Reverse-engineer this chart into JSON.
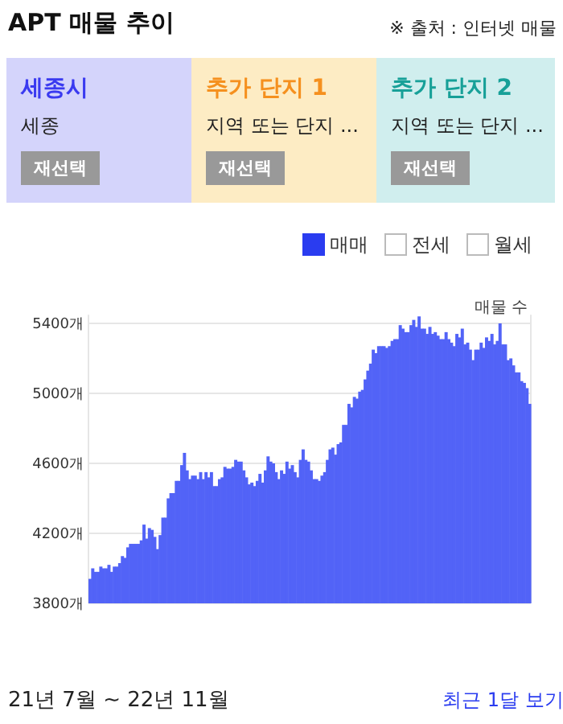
{
  "chart_data": {
    "type": "bar",
    "title": "APT 매물 추이",
    "ylabel": "매물 수",
    "annotations": [
      "※ 출처 : 인터넷 매물",
      "세종시",
      "세종",
      "재선택",
      "추가 단지 1",
      "지역 또는 단지 ...",
      "재선택",
      "추가 단지 2",
      "지역 또는 단지 ...",
      "재선택",
      "전세",
      "월세",
      "21년 7월 ~ 22년 11월",
      "최근 1달 보기"
    ],
    "ylim": [
      3800,
      5450
    ],
    "yticks": [
      {
        "value": 3800,
        "label": "3800개"
      },
      {
        "value": 4200,
        "label": "4200개"
      },
      {
        "value": 4600,
        "label": "4600개"
      },
      {
        "value": 5000,
        "label": "5000개"
      },
      {
        "value": 5400,
        "label": "5400개"
      }
    ],
    "grid": "y",
    "legend": "top right",
    "tick_labels": "y",
    "categories": [
      null,
      null,
      null,
      null,
      null,
      null,
      null,
      null,
      null,
      null,
      null,
      null,
      null,
      null,
      null,
      null,
      null,
      null,
      null,
      null,
      null,
      null,
      null,
      null,
      null,
      null,
      null,
      null,
      null,
      null,
      null,
      null,
      null,
      null,
      null,
      null,
      null,
      null,
      null,
      null,
      null,
      null,
      null,
      null,
      null,
      null,
      null,
      null,
      null,
      null,
      null,
      null,
      null,
      null,
      null,
      null,
      null,
      null,
      null,
      null,
      null,
      null,
      null,
      null,
      null,
      null,
      null,
      null,
      null,
      null,
      null,
      null,
      null,
      null,
      null,
      null,
      null,
      null,
      null,
      null,
      null,
      null,
      null,
      null,
      null,
      null,
      null,
      null,
      null,
      null,
      null,
      null,
      null,
      null,
      null,
      null,
      null,
      null,
      null,
      null,
      null,
      null,
      null,
      null,
      null,
      null,
      null,
      null,
      null,
      null,
      null,
      null,
      null,
      null,
      null,
      null,
      null,
      null,
      null,
      null,
      null,
      null,
      null,
      null,
      null,
      null,
      null,
      null,
      null,
      null,
      null,
      null,
      null,
      null,
      null,
      null,
      null,
      null,
      null,
      null,
      null,
      null,
      null,
      null,
      null,
      null,
      null,
      null,
      null,
      null,
      null,
      null,
      null,
      null,
      null,
      null,
      null,
      null,
      null,
      null,
      null,
      null,
      null,
      null
    ],
    "series": [
      {
        "name": "매매",
        "color": "#5263f7",
        "values": [
          3940,
          4000,
          3980,
          3980,
          4010,
          4000,
          4000,
          4020,
          3980,
          4010,
          4010,
          4030,
          4070,
          4060,
          4120,
          4140,
          4140,
          4140,
          4140,
          4160,
          4250,
          4170,
          4230,
          4220,
          4180,
          4110,
          4190,
          4290,
          4290,
          4400,
          4430,
          4430,
          4500,
          4500,
          4590,
          4660,
          4560,
          4510,
          4530,
          4530,
          4510,
          4550,
          4510,
          4550,
          4520,
          4550,
          4470,
          4470,
          4510,
          4520,
          4580,
          4570,
          4570,
          4580,
          4620,
          4610,
          4610,
          4560,
          4520,
          4480,
          4490,
          4470,
          4500,
          4540,
          4490,
          4560,
          4640,
          4610,
          4600,
          4550,
          4510,
          4560,
          4540,
          4610,
          4570,
          4590,
          4550,
          4520,
          4620,
          4680,
          4620,
          4610,
          4560,
          4510,
          4510,
          4500,
          4530,
          4550,
          4620,
          4680,
          4690,
          4650,
          4710,
          4720,
          4820,
          4820,
          4940,
          4920,
          4980,
          4970,
          5010,
          5020,
          5080,
          5130,
          5170,
          5250,
          5230,
          5270,
          5270,
          5270,
          5260,
          5270,
          5300,
          5310,
          5310,
          5390,
          5370,
          5350,
          5350,
          5390,
          5420,
          5380,
          5440,
          5370,
          5370,
          5340,
          5380,
          5340,
          5350,
          5330,
          5310,
          5310,
          5350,
          5310,
          5290,
          5270,
          5340,
          5320,
          5370,
          5280,
          5290,
          5250,
          5190,
          5250,
          5250,
          5290,
          5260,
          5320,
          5300,
          5340,
          5280,
          5300,
          5400,
          5280,
          5280,
          5190,
          5200,
          5160,
          5120,
          5120,
          5070,
          5060,
          5030,
          4940
        ]
      }
    ]
  }
}
